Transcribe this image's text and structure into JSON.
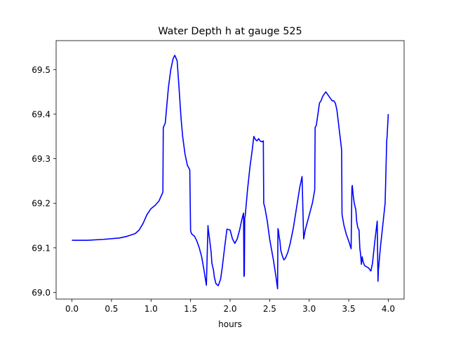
{
  "chart_data": {
    "type": "line",
    "title": "Water Depth h at gauge 525",
    "xlabel": "hours",
    "ylabel": "",
    "xlim": [
      -0.2,
      4.2
    ],
    "ylim": [
      68.985,
      69.565
    ],
    "xticks": [
      0.0,
      0.5,
      1.0,
      1.5,
      2.0,
      2.5,
      3.0,
      3.5,
      4.0
    ],
    "xtick_labels": [
      "0.0",
      "0.5",
      "1.0",
      "1.5",
      "2.0",
      "2.5",
      "3.0",
      "3.5",
      "4.0"
    ],
    "yticks": [
      69.0,
      69.1,
      69.2,
      69.3,
      69.4,
      69.5
    ],
    "ytick_labels": [
      "69.0",
      "69.1",
      "69.2",
      "69.3",
      "69.4",
      "69.5"
    ],
    "grid": false,
    "legend": "none",
    "series": [
      {
        "color": "#0000ff",
        "x": [
          0.0,
          0.2,
          0.4,
          0.6,
          0.7,
          0.8,
          0.85,
          0.9,
          0.95,
          1.0,
          1.05,
          1.1,
          1.15,
          1.155,
          1.18,
          1.2,
          1.22,
          1.25,
          1.28,
          1.3,
          1.33,
          1.35,
          1.38,
          1.4,
          1.43,
          1.46,
          1.49,
          1.5,
          1.505,
          1.52,
          1.55,
          1.58,
          1.61,
          1.64,
          1.67,
          1.7,
          1.72,
          1.725,
          1.74,
          1.76,
          1.77,
          1.79,
          1.8,
          1.82,
          1.85,
          1.88,
          1.9,
          1.93,
          1.96,
          2.0,
          2.03,
          2.06,
          2.09,
          2.12,
          2.15,
          2.17,
          2.175,
          2.18,
          2.185,
          2.19,
          2.2,
          2.22,
          2.25,
          2.28,
          2.3,
          2.32,
          2.34,
          2.36,
          2.38,
          2.4,
          2.42,
          2.425,
          2.44,
          2.47,
          2.5,
          2.55,
          2.58,
          2.6,
          2.605,
          2.61,
          2.62,
          2.63,
          2.64,
          2.66,
          2.68,
          2.7,
          2.73,
          2.76,
          2.8,
          2.84,
          2.88,
          2.91,
          2.93,
          2.935,
          2.95,
          2.98,
          3.01,
          3.04,
          3.07,
          3.075,
          3.09,
          3.11,
          3.13,
          3.15,
          3.17,
          3.19,
          3.21,
          3.23,
          3.25,
          3.27,
          3.29,
          3.31,
          3.33,
          3.35,
          3.37,
          3.39,
          3.41,
          3.415,
          3.44,
          3.47,
          3.5,
          3.53,
          3.54,
          3.545,
          3.555,
          3.57,
          3.59,
          3.6,
          3.615,
          3.63,
          3.64,
          3.65,
          3.66,
          3.67,
          3.68,
          3.69,
          3.7,
          3.72,
          3.75,
          3.78,
          3.8,
          3.83,
          3.86,
          3.87,
          3.875,
          3.9,
          3.93,
          3.96,
          3.98,
          3.985,
          4.0
        ],
        "y": [
          69.117,
          69.117,
          69.119,
          69.122,
          69.126,
          69.132,
          69.14,
          69.155,
          69.175,
          69.188,
          69.195,
          69.205,
          69.225,
          69.37,
          69.38,
          69.42,
          69.46,
          69.5,
          69.525,
          69.532,
          69.52,
          69.47,
          69.39,
          69.35,
          69.31,
          69.285,
          69.275,
          69.14,
          69.135,
          69.13,
          69.126,
          69.115,
          69.1,
          69.08,
          69.05,
          69.016,
          69.15,
          69.14,
          69.12,
          69.09,
          69.065,
          69.05,
          69.035,
          69.02,
          69.015,
          69.03,
          69.055,
          69.1,
          69.142,
          69.14,
          69.12,
          69.11,
          69.12,
          69.14,
          69.165,
          69.178,
          69.036,
          69.038,
          69.168,
          69.17,
          69.19,
          69.23,
          69.28,
          69.32,
          69.35,
          69.343,
          69.34,
          69.345,
          69.34,
          69.338,
          69.34,
          69.2,
          69.19,
          69.16,
          69.12,
          69.07,
          69.035,
          69.008,
          69.143,
          69.14,
          69.125,
          69.115,
          69.095,
          69.082,
          69.073,
          69.077,
          69.09,
          69.11,
          69.145,
          69.19,
          69.235,
          69.26,
          69.12,
          69.125,
          69.14,
          69.16,
          69.18,
          69.2,
          69.23,
          69.37,
          69.375,
          69.4,
          69.425,
          69.43,
          69.44,
          69.445,
          69.45,
          69.445,
          69.44,
          69.435,
          69.43,
          69.43,
          69.425,
          69.41,
          69.38,
          69.35,
          69.32,
          69.175,
          69.15,
          69.13,
          69.115,
          69.098,
          69.235,
          69.24,
          69.22,
          69.2,
          69.185,
          69.16,
          69.145,
          69.14,
          69.1,
          69.085,
          69.063,
          69.08,
          69.07,
          69.065,
          69.06,
          69.058,
          69.055,
          69.048,
          69.065,
          69.115,
          69.16,
          69.025,
          69.05,
          69.1,
          69.15,
          69.2,
          69.34,
          69.35,
          69.4
        ]
      }
    ]
  }
}
